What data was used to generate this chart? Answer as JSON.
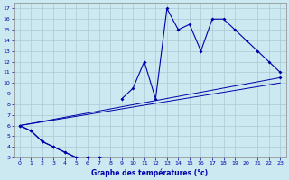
{
  "title": "Graphe des températures (°c)",
  "background_color": "#cce8f0",
  "grid_color": "#aac8d4",
  "line_color": "#0000aa",
  "xlim": [
    -0.5,
    23.5
  ],
  "ylim": [
    3,
    17.5
  ],
  "xticks": [
    0,
    1,
    2,
    3,
    4,
    5,
    6,
    7,
    8,
    9,
    10,
    11,
    12,
    13,
    14,
    15,
    16,
    17,
    18,
    19,
    20,
    21,
    22,
    23
  ],
  "yticks": [
    3,
    4,
    5,
    6,
    7,
    8,
    9,
    10,
    11,
    12,
    13,
    14,
    15,
    16,
    17
  ],
  "hours": [
    0,
    1,
    2,
    3,
    4,
    5,
    6,
    7,
    8,
    9,
    10,
    11,
    12,
    13,
    14,
    15,
    16,
    17,
    18,
    19,
    20,
    21,
    22,
    23
  ],
  "max_temp": [
    6.0,
    5.5,
    4.5,
    4.0,
    3.5,
    3.0,
    3.0,
    3.0,
    null,
    8.5,
    9.5,
    12.0,
    8.5,
    17.0,
    15.0,
    15.5,
    13.0,
    16.0,
    16.0,
    15.0,
    14.0,
    13.0,
    12.0,
    11.0
  ],
  "min_temp": [
    6.0,
    5.5,
    4.5,
    4.0,
    3.5,
    3.0,
    3.0,
    3.0,
    null,
    null,
    null,
    null,
    null,
    null,
    null,
    null,
    null,
    null,
    null,
    null,
    null,
    null,
    null,
    10.5
  ],
  "trend1_x": [
    0,
    23
  ],
  "trend1_y": [
    6.0,
    10.5
  ],
  "trend2_x": [
    0,
    23
  ],
  "trend2_y": [
    6.0,
    10.0
  ]
}
